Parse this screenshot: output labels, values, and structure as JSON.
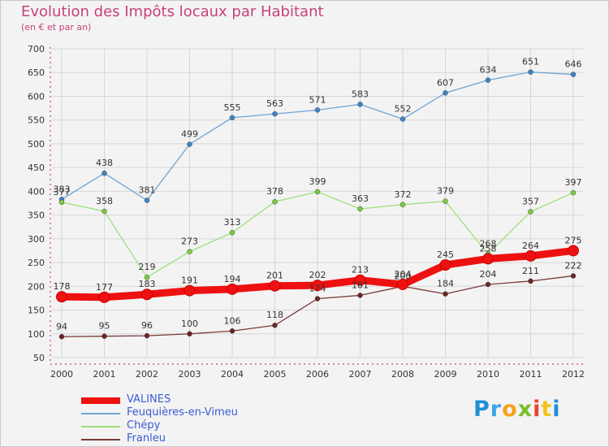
{
  "header": {
    "title": "Evolution des Impôts locaux par Habitant",
    "subtitle": "(en € et par an)"
  },
  "colors": {
    "title": "#c8417a",
    "axis": "#c8417a",
    "grid": "#d6d6d6",
    "background": "#f3f3f3"
  },
  "logo": {
    "letters": [
      "P",
      "r",
      "o",
      "x",
      "i",
      "t",
      "i"
    ],
    "colors": [
      "#1f8ed6",
      "#39a4e6",
      "#f7a21b",
      "#7bbf2a",
      "#e8432f",
      "#f7c21b",
      "#1f8ed6"
    ]
  },
  "chart_data": {
    "type": "line",
    "title": "Evolution des Impôts locaux par Habitant",
    "subtitle": "(en € et par an)",
    "x": [
      "2000",
      "2001",
      "2002",
      "2003",
      "2004",
      "2005",
      "2006",
      "2007",
      "2008",
      "2009",
      "2010",
      "2011",
      "2012"
    ],
    "ylim": [
      50,
      700
    ],
    "yticks": [
      50,
      100,
      150,
      200,
      250,
      300,
      350,
      400,
      450,
      500,
      550,
      600,
      650,
      700
    ],
    "grid": true,
    "legend_position": "bottom-left",
    "series": [
      {
        "name": "VALINES",
        "color": "#ee1111",
        "marker": "#ee1111",
        "emphasis": true,
        "values": [
          178,
          177,
          183,
          191,
          194,
          201,
          202,
          213,
          204,
          245,
          258,
          264,
          275
        ]
      },
      {
        "name": "Feuquières-en-Vimeu",
        "color": "#6fa3d4",
        "marker": "#3d85c6",
        "emphasis": false,
        "values": [
          383,
          438,
          381,
          499,
          555,
          563,
          571,
          583,
          552,
          607,
          634,
          651,
          646
        ]
      },
      {
        "name": "Chépy",
        "color": "#9ee07a",
        "marker": "#7acc3f",
        "emphasis": false,
        "values": [
          377,
          358,
          219,
          273,
          313,
          378,
          399,
          363,
          372,
          379,
          268,
          357,
          397
        ]
      },
      {
        "name": "Franleu",
        "color": "#7a3a3a",
        "marker": "#6b2525",
        "emphasis": false,
        "values": [
          94,
          95,
          96,
          100,
          106,
          118,
          174,
          181,
          200,
          184,
          204,
          211,
          222
        ]
      }
    ]
  }
}
